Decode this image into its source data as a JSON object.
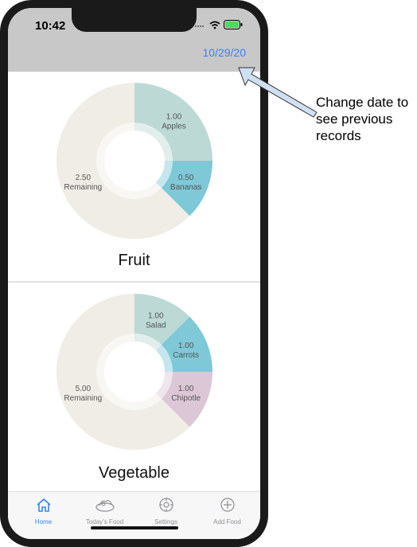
{
  "status": {
    "time": "10:42"
  },
  "nav": {
    "date": "10/29/20"
  },
  "charts": [
    {
      "title": "Fruit",
      "segments": [
        {
          "value": "1.00",
          "label": "Apples",
          "color": "#bcd9d5"
        },
        {
          "value": "0.50",
          "label": "Bananas",
          "color": "#7ec8d8"
        },
        {
          "value": "2.50",
          "label": "Remaining",
          "color": "#f0ede6"
        }
      ]
    },
    {
      "title": "Vegetable",
      "segments": [
        {
          "value": "1.00",
          "label": "Salad",
          "color": "#bcd9d5"
        },
        {
          "value": "1.00",
          "label": "Carrots",
          "color": "#7ec8d8"
        },
        {
          "value": "1.00",
          "label": "Chipotle",
          "color": "#dcc7d6"
        },
        {
          "value": "5.00",
          "label": "Remaining",
          "color": "#f0ede6"
        }
      ]
    }
  ],
  "tabs": [
    {
      "label": "Home",
      "icon": "home-icon",
      "active": true
    },
    {
      "label": "Today's Food",
      "icon": "food-icon",
      "active": false
    },
    {
      "label": "Settings",
      "icon": "settings-icon",
      "active": false
    },
    {
      "label": "Add Food",
      "icon": "add-icon",
      "active": false
    }
  ],
  "annotation": {
    "text": "Change date to see previous records"
  },
  "colors": {
    "accent": "#3b82f6",
    "bar": "#c8c8c8"
  }
}
